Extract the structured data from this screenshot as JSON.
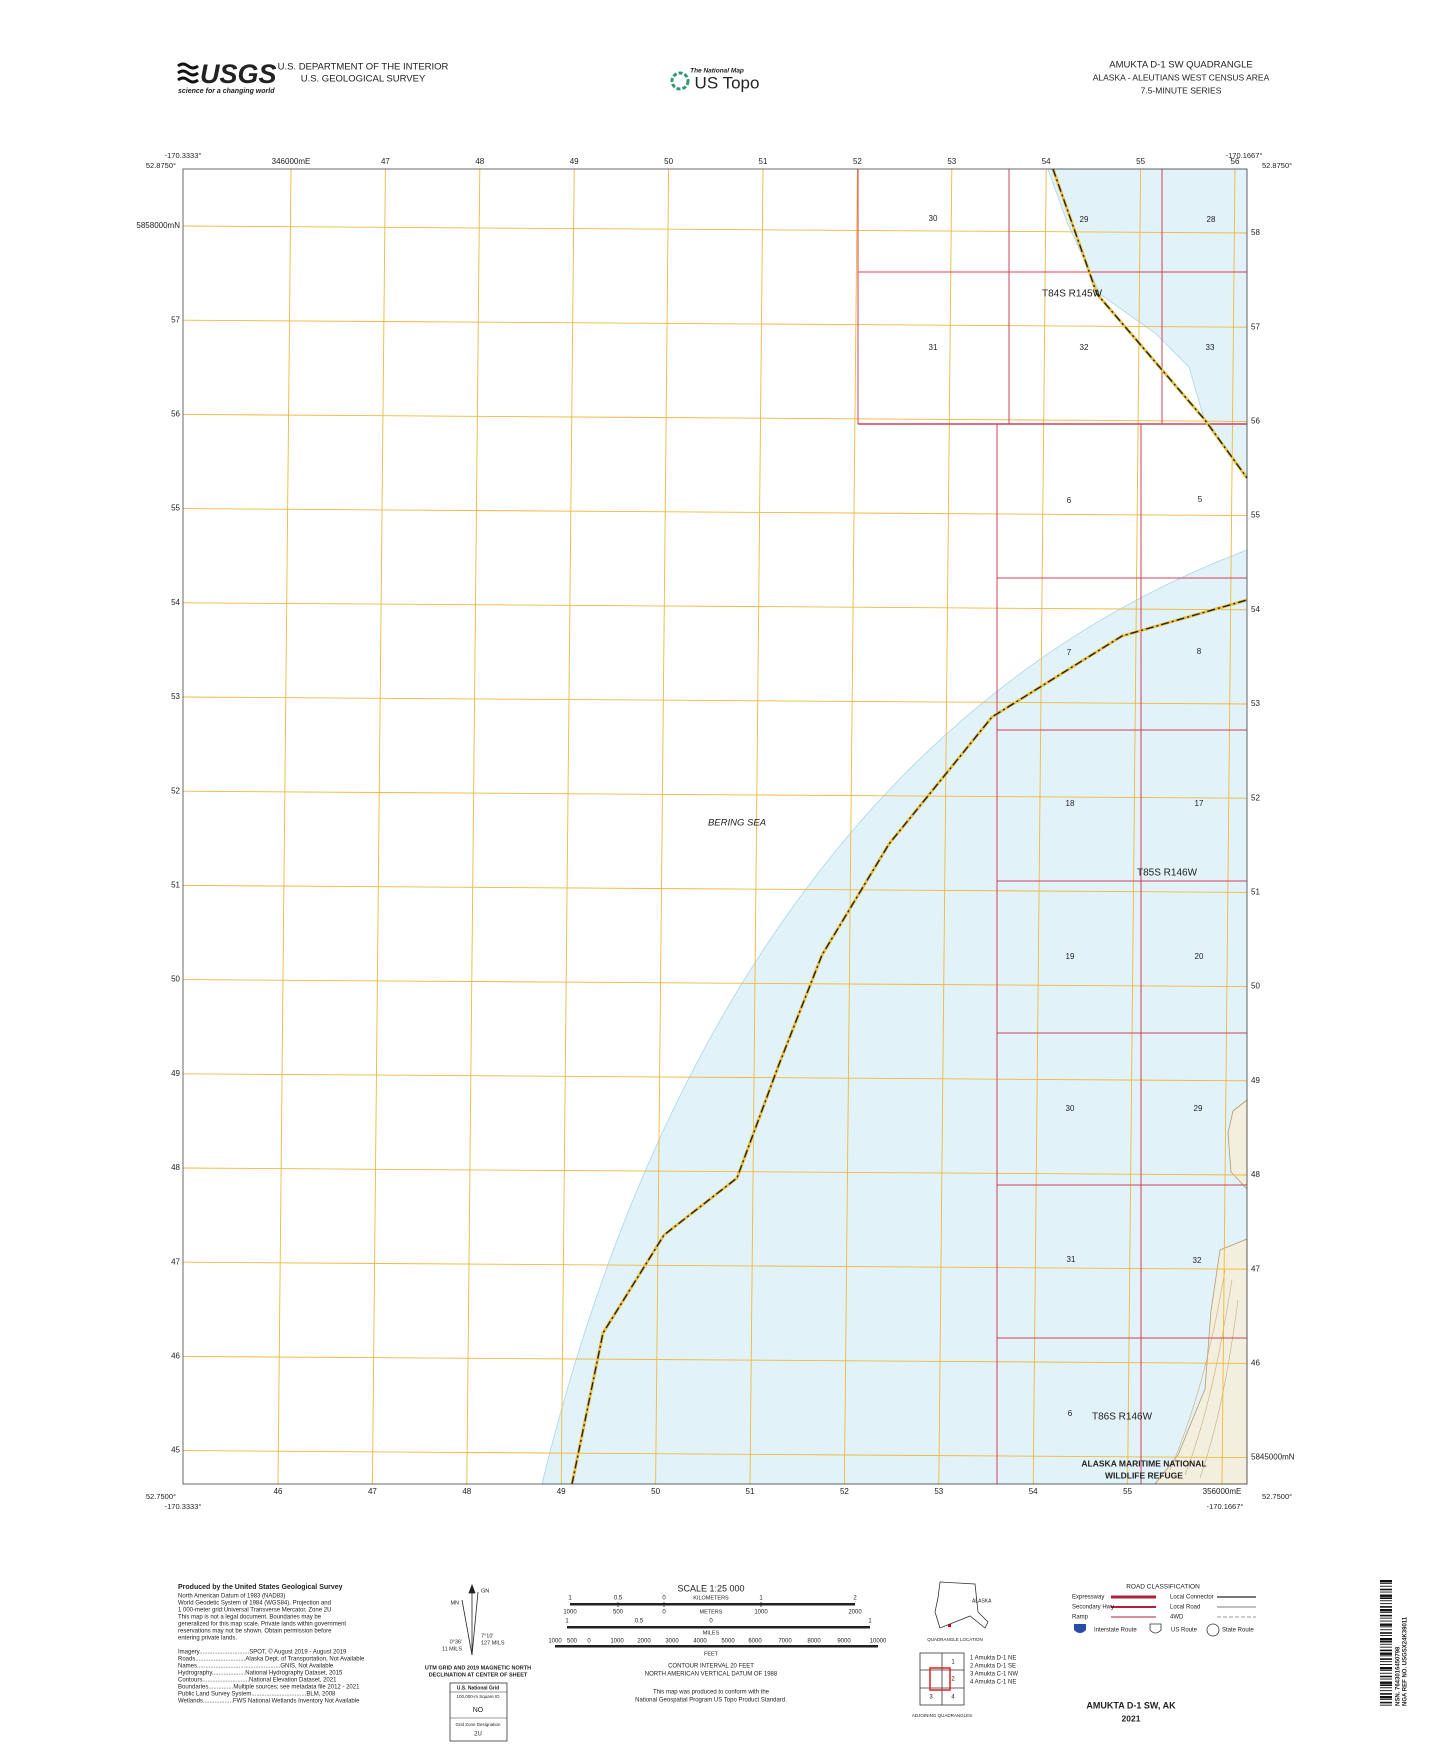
{
  "header": {
    "agency_logo": "USGS",
    "agency_tagline": "science for a changing world",
    "department": "U.S. DEPARTMENT OF THE INTERIOR",
    "survey": "U.S. GEOLOGICAL SURVEY",
    "product_tagline": "The National Map",
    "product": "US Topo",
    "quad_title": "AMUKTA D-1 SW QUADRANGLE",
    "region": "ALASKA - ALEUTIANS WEST CENSUS AREA",
    "series": "7.5-MINUTE SERIES"
  },
  "map": {
    "corners": {
      "nw_lon": "-170.3333°",
      "nw_lat": "52.8750°",
      "ne_lon": "-170.1667°",
      "ne_lat": "52.8750°",
      "sw_lat": "52.7500°",
      "sw_lon": "-170.3333°",
      "se_lon": "-170.1667°",
      "se_lat": "52.7500°"
    },
    "easting_top": [
      "346000mE",
      "47",
      "48",
      "49",
      "50",
      "51",
      "52",
      "53",
      "54",
      "55",
      "56"
    ],
    "easting_bottom": [
      "46",
      "47",
      "48",
      "49",
      "50",
      "51",
      "52",
      "53",
      "54",
      "55",
      "356000mE"
    ],
    "northing_left": [
      "5858000mN",
      "57",
      "56",
      "55",
      "54",
      "53",
      "52",
      "51",
      "50",
      "49",
      "48",
      "47",
      "46",
      "45"
    ],
    "northing_right": [
      "58",
      "57",
      "56",
      "55",
      "54",
      "53",
      "52",
      "51",
      "50",
      "49",
      "48",
      "47",
      "46",
      "5845000mN"
    ],
    "water_label": "BERING SEA",
    "townships": [
      "T84S R145W",
      "T85S R146W",
      "T86S R146W"
    ],
    "sections": [
      "30",
      "29",
      "28",
      "31",
      "32",
      "33",
      "6",
      "5",
      "7",
      "8",
      "18",
      "17",
      "19",
      "20",
      "30",
      "29",
      "31",
      "32",
      "6"
    ],
    "refuge": [
      "ALASKA MARITIME NATIONAL",
      "WILDLIFE REFUGE"
    ]
  },
  "footer": {
    "credits_title": "Produced by the United States Geological Survey",
    "credits": [
      "North American Datum of 1983 (NAD83)",
      "World Geodetic System of 1984 (WGS84). Projection and",
      "1 000-meter grid:Universal Transverse Mercator, Zone 2U",
      "This map is not a legal document. Boundaries may be",
      "generalized for this map scale. Private lands within government",
      "reservations may not be shown. Obtain permission before",
      "entering private lands."
    ],
    "sources": [
      "Imagery..............................SPOT, © August 2019 - August 2019",
      "Roads..............................Alaska Dept. of Transportation, Not Available",
      "Names..................................................GNIS, Not Available",
      "Hydrography....................National Hydrography Dataset, 2015",
      "Contours............................National Elevation Dataset, 2021",
      "Boundaries...............Multiple sources; see metadata file 2012 - 2021",
      "Public Land Survey System.................................BLM, 2008",
      "Wetlands..................FWS National Wetlands Inventory Not Available"
    ],
    "declination": {
      "grid_north": "GN",
      "magnetic_north": "MN",
      "grid_angle": "0°36'",
      "grid_mils": "11 MILS",
      "mag_angle": "7°10'",
      "mag_mils": "127 MILS",
      "caption": [
        "UTM GRID AND 2019 MAGNETIC NORTH",
        "DECLINATION AT CENTER OF SHEET"
      ]
    },
    "usng": {
      "title": "U.S. National Grid",
      "square_caption": "100,000-m Square ID",
      "square_id": "NO",
      "zone_caption": "Grid Zone Designation",
      "zone": "2U"
    },
    "scale": {
      "title": "SCALE 1:25 000",
      "km_unit": "KILOMETERS",
      "km": [
        "1",
        "0.5",
        "0",
        "1",
        "2"
      ],
      "m_unit": "METERS",
      "m": [
        "1000",
        "500",
        "0",
        "1000",
        "2000"
      ],
      "mi_unit": "MILES",
      "mi": [
        "1",
        "0.5",
        "0",
        "1"
      ],
      "ft_unit": "FEET",
      "ft": [
        "1000",
        "500",
        "0",
        "1000",
        "2000",
        "3000",
        "4000",
        "5000",
        "6000",
        "7000",
        "8000",
        "9000",
        "10000"
      ]
    },
    "contour": [
      "CONTOUR INTERVAL 20 FEET",
      "NORTH AMERICAN VERTICAL DATUM OF 1988"
    ],
    "standard": [
      "This map was produced to conform with the",
      "National Geospatial Program US Topo Product Standard."
    ],
    "inset": {
      "state": "ALASKA",
      "caption": "QUADRANGLE LOCATION"
    },
    "adjoining": {
      "numbers": [
        "1",
        "2",
        "3",
        "4"
      ],
      "names": [
        "1 Amukta D-1 NE",
        "2 Amukta D-1 SE",
        "3 Amukta C-1 NW",
        "4 Amukta C-1 NE"
      ],
      "caption": "ADJOINING QUADRANGLES"
    },
    "roads": {
      "title": "ROAD CLASSIFICATION",
      "left": [
        "Expressway",
        "Secondary Hwy",
        "Ramp"
      ],
      "right": [
        "Local Connector",
        "Local Road",
        "4WD"
      ],
      "shields": [
        "Interstate Route",
        "US Route",
        "State Route"
      ]
    },
    "sheet_title": "AMUKTA D-1 SW,  AK",
    "year": "2021",
    "barcode": [
      "NSN. 7643016450798",
      "NGA REF NO. USGSX24K39011"
    ]
  }
}
